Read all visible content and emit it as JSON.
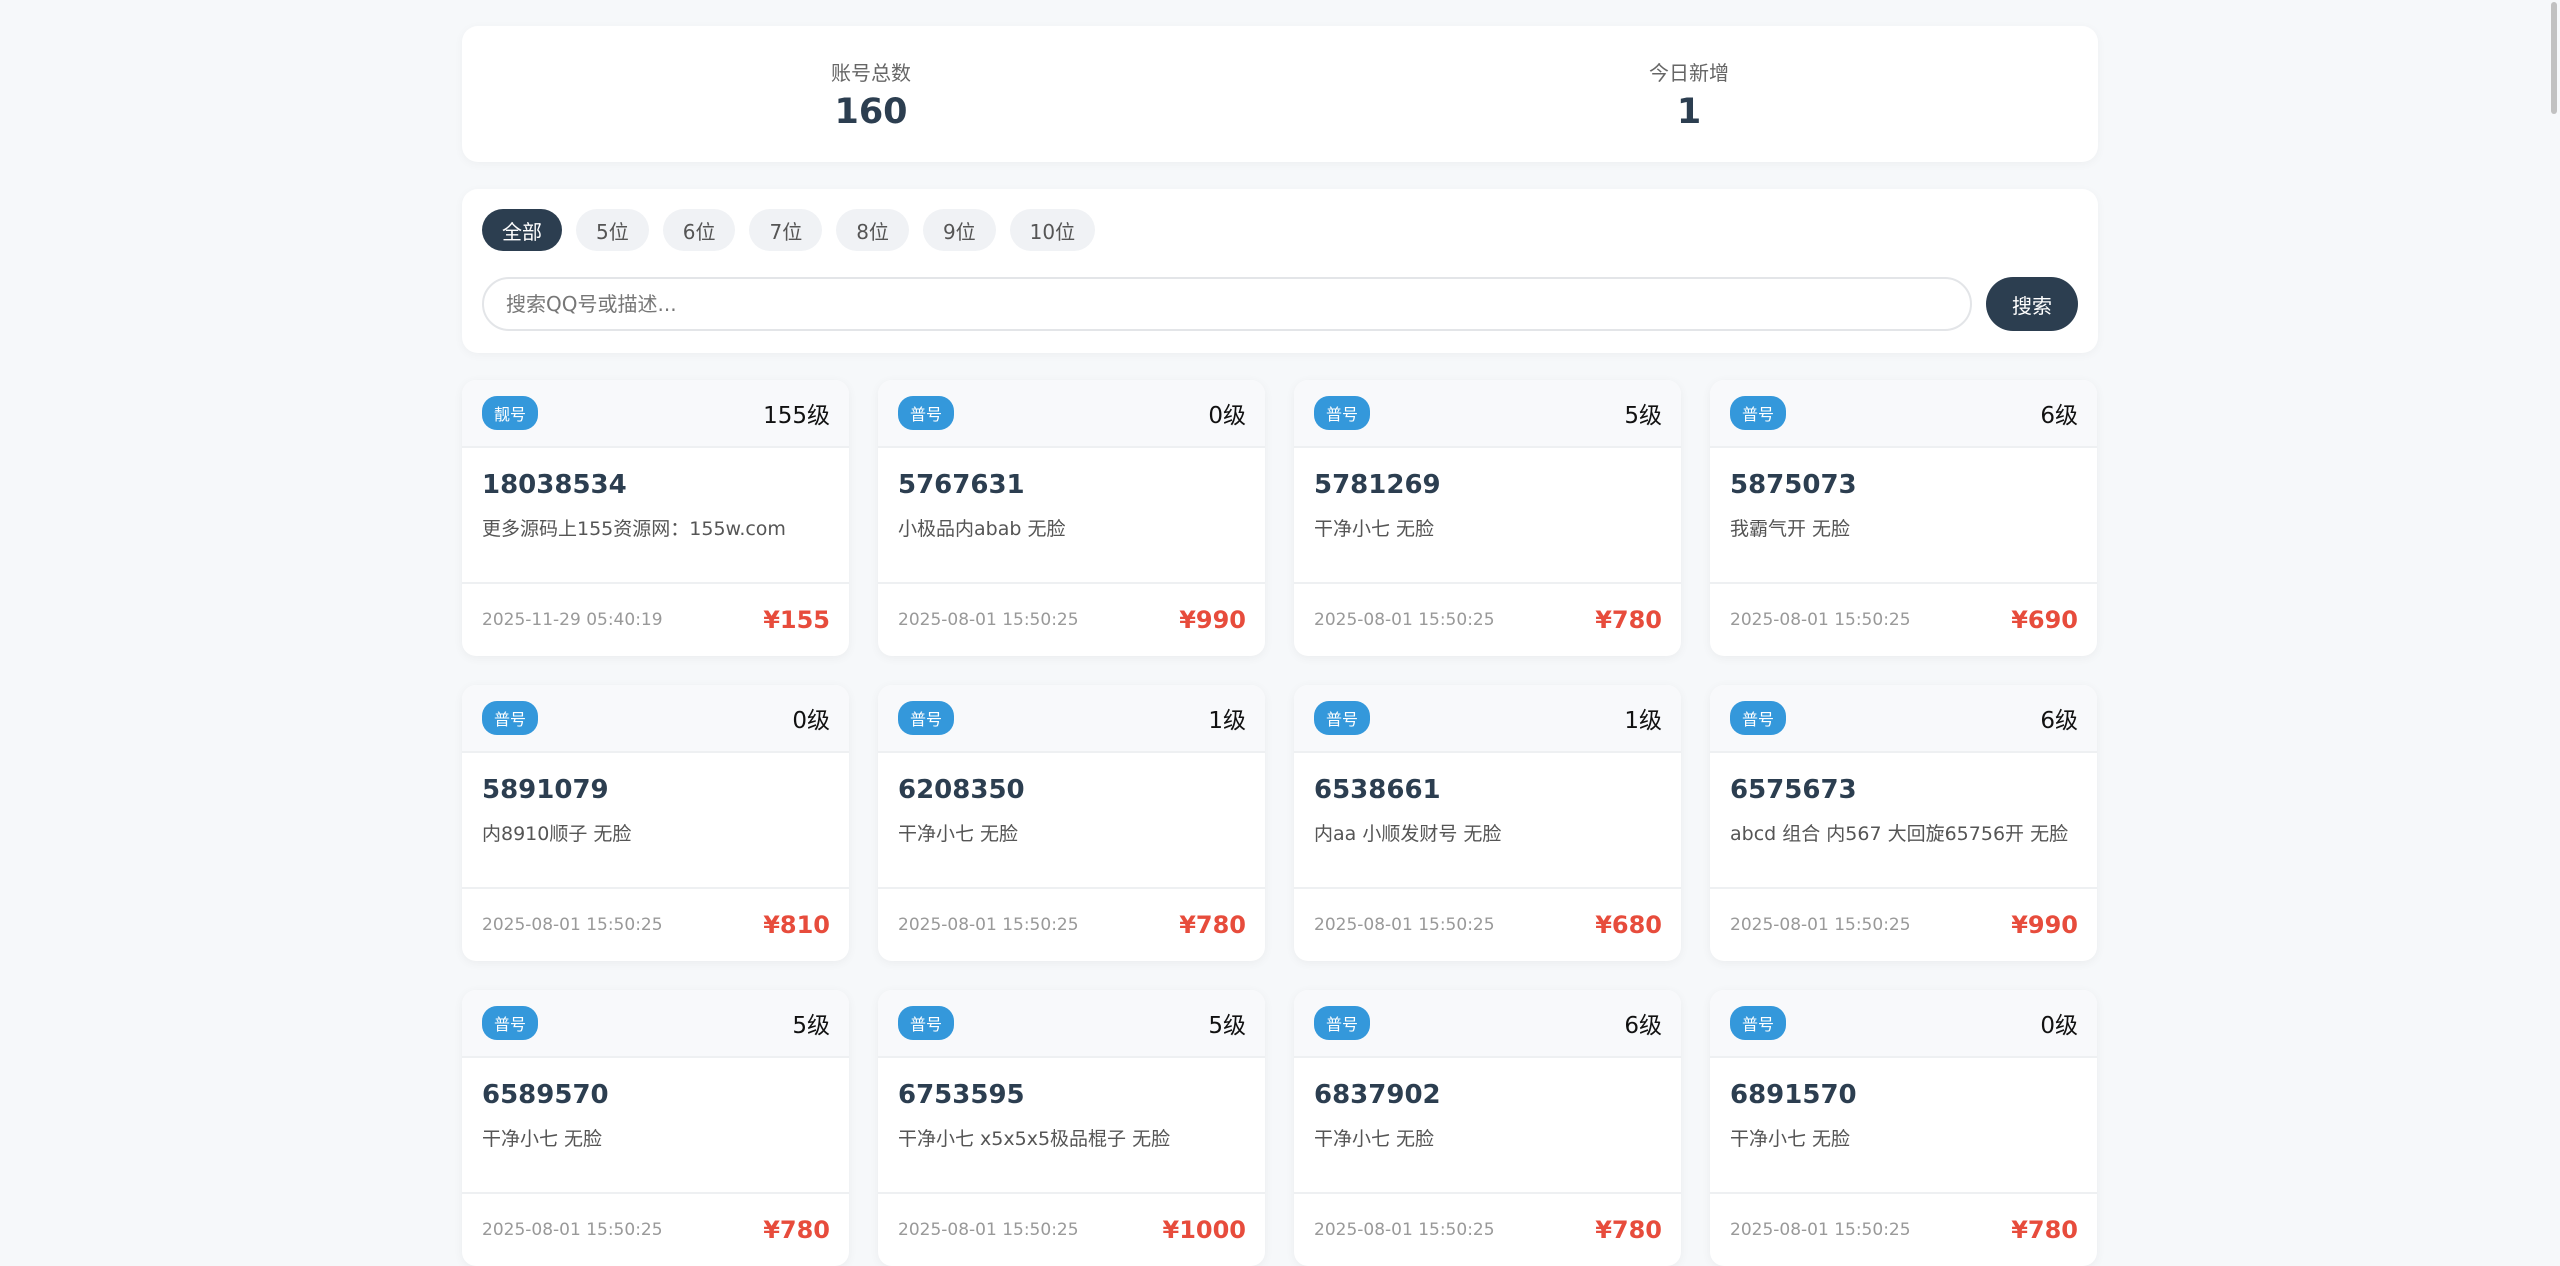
{
  "stats": [
    {
      "label": "账号总数",
      "value": "160"
    },
    {
      "label": "今日新增",
      "value": "1"
    }
  ],
  "filter": {
    "tabs": [
      "全部",
      "5位",
      "6位",
      "7位",
      "8位",
      "9位",
      "10位"
    ],
    "active_tab": "全部",
    "search_placeholder": "搜索QQ号或描述...",
    "search_value": "",
    "search_label": "搜索"
  },
  "colors": {
    "accent": "#2c3e50",
    "badge": "#3498db",
    "price": "#e74c3c"
  },
  "cards": [
    {
      "badge": "靓号",
      "level": "155级",
      "qq": "18038534",
      "desc": "更多源码上155资源网：155w.com",
      "date": "2025-11-29 05:40:19",
      "price": "¥155"
    },
    {
      "badge": "普号",
      "level": "0级",
      "qq": "5767631",
      "desc": "小极品内abab 无脸",
      "date": "2025-08-01 15:50:25",
      "price": "¥990"
    },
    {
      "badge": "普号",
      "level": "5级",
      "qq": "5781269",
      "desc": "干净小七 无脸",
      "date": "2025-08-01 15:50:25",
      "price": "¥780"
    },
    {
      "badge": "普号",
      "level": "6级",
      "qq": "5875073",
      "desc": "我霸气开 无脸",
      "date": "2025-08-01 15:50:25",
      "price": "¥690"
    },
    {
      "badge": "普号",
      "level": "0级",
      "qq": "5891079",
      "desc": "内8910顺子 无脸",
      "date": "2025-08-01 15:50:25",
      "price": "¥810"
    },
    {
      "badge": "普号",
      "level": "1级",
      "qq": "6208350",
      "desc": "干净小七 无脸",
      "date": "2025-08-01 15:50:25",
      "price": "¥780"
    },
    {
      "badge": "普号",
      "level": "1级",
      "qq": "6538661",
      "desc": "内aa 小顺发财号 无脸",
      "date": "2025-08-01 15:50:25",
      "price": "¥680"
    },
    {
      "badge": "普号",
      "level": "6级",
      "qq": "6575673",
      "desc": "abcd 组合 内567 大回旋65756开 无脸",
      "date": "2025-08-01 15:50:25",
      "price": "¥990"
    },
    {
      "badge": "普号",
      "level": "5级",
      "qq": "6589570",
      "desc": "干净小七 无脸",
      "date": "2025-08-01 15:50:25",
      "price": "¥780"
    },
    {
      "badge": "普号",
      "level": "5级",
      "qq": "6753595",
      "desc": "干净小七 x5x5x5极品棍子 无脸",
      "date": "2025-08-01 15:50:25",
      "price": "¥1000"
    },
    {
      "badge": "普号",
      "level": "6级",
      "qq": "6837902",
      "desc": "干净小七 无脸",
      "date": "2025-08-01 15:50:25",
      "price": "¥780"
    },
    {
      "badge": "普号",
      "level": "0级",
      "qq": "6891570",
      "desc": "干净小七 无脸",
      "date": "2025-08-01 15:50:25",
      "price": "¥780"
    }
  ]
}
